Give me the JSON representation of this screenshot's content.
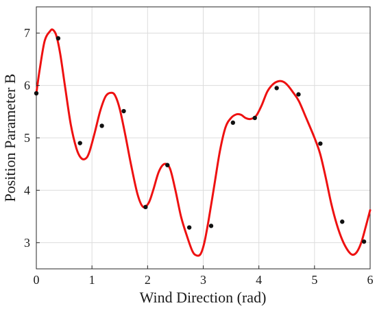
{
  "chart_data": {
    "type": "scatter",
    "title": "",
    "xlabel": "Wind Direction (rad)",
    "ylabel": "Position Parameter B",
    "xlim": [
      0,
      6
    ],
    "ylim": [
      2.5,
      7.5
    ],
    "xticks": [
      "0",
      "1",
      "2",
      "3",
      "4",
      "5",
      "6"
    ],
    "yticks": [
      "3",
      "4",
      "5",
      "6",
      "7"
    ],
    "grid": true,
    "series": [
      {
        "kind": "markers",
        "color": "#111111",
        "x": [
          0.0,
          0.393,
          0.785,
          1.178,
          1.571,
          1.963,
          2.356,
          2.749,
          3.142,
          3.534,
          3.927,
          4.32,
          4.712,
          5.105,
          5.498,
          5.89
        ],
        "y": [
          5.85,
          6.9,
          4.9,
          5.23,
          5.51,
          3.68,
          4.48,
          3.29,
          3.32,
          5.29,
          5.38,
          5.95,
          5.83,
          4.89,
          3.4,
          3.02
        ]
      },
      {
        "kind": "line",
        "color": "#ee1111",
        "x": [
          0.0,
          0.06,
          0.15,
          0.25,
          0.3,
          0.36,
          0.43,
          0.52,
          0.62,
          0.72,
          0.8,
          0.88,
          0.95,
          1.05,
          1.15,
          1.25,
          1.35,
          1.42,
          1.5,
          1.6,
          1.7,
          1.82,
          1.92,
          2.02,
          2.1,
          2.2,
          2.3,
          2.4,
          2.5,
          2.6,
          2.7,
          2.8,
          2.87,
          2.95,
          3.02,
          3.1,
          3.2,
          3.3,
          3.4,
          3.5,
          3.6,
          3.68,
          3.76,
          3.85,
          3.95,
          4.05,
          4.15,
          4.25,
          4.35,
          4.44,
          4.52,
          4.62,
          4.72,
          4.85,
          5.0,
          5.1,
          5.2,
          5.3,
          5.4,
          5.5,
          5.6,
          5.68,
          5.76,
          5.84,
          5.92,
          6.0
        ],
        "y": [
          5.85,
          6.3,
          6.85,
          7.04,
          7.06,
          6.95,
          6.6,
          5.95,
          5.25,
          4.8,
          4.62,
          4.6,
          4.72,
          5.1,
          5.52,
          5.8,
          5.86,
          5.8,
          5.55,
          5.05,
          4.5,
          3.92,
          3.68,
          3.76,
          4.0,
          4.35,
          4.5,
          4.42,
          4.0,
          3.5,
          3.15,
          2.85,
          2.76,
          2.78,
          3.0,
          3.45,
          4.1,
          4.75,
          5.2,
          5.38,
          5.45,
          5.44,
          5.38,
          5.36,
          5.42,
          5.62,
          5.88,
          6.02,
          6.08,
          6.07,
          6.0,
          5.86,
          5.7,
          5.38,
          5.0,
          4.7,
          4.25,
          3.75,
          3.35,
          3.05,
          2.85,
          2.77,
          2.82,
          3.0,
          3.3,
          3.62
        ]
      }
    ]
  }
}
